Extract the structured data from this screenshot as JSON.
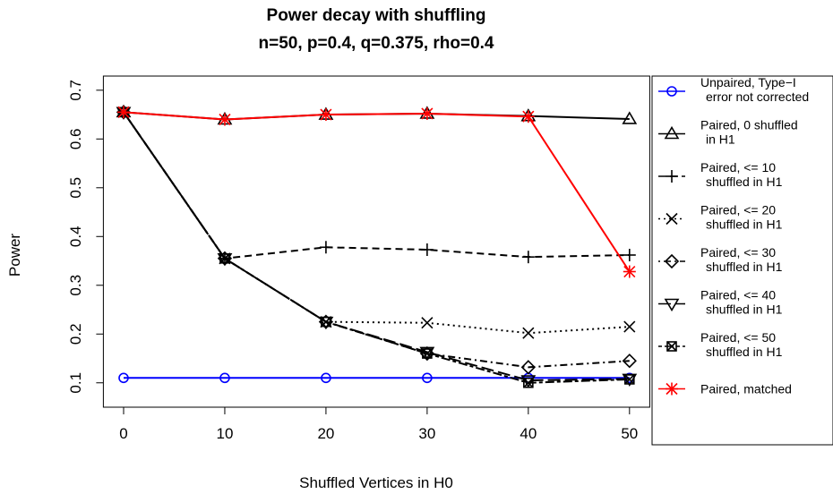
{
  "chart_data": {
    "type": "line",
    "title": "Power decay with shuffling",
    "subtitle": "n=50, p=0.4, q=0.375, rho=0.4",
    "x_label": "Shuffled Vertices in H0",
    "y_label": "Power",
    "x": [
      0,
      10,
      20,
      30,
      40,
      50
    ],
    "xlim": [
      -2,
      52
    ],
    "xticks": [
      0,
      10,
      20,
      30,
      40,
      50
    ],
    "ylim": [
      0.05,
      0.729
    ],
    "yticks": [
      0.1,
      0.2,
      0.3,
      0.4,
      0.5,
      0.6,
      0.7
    ],
    "legend": "right",
    "series": [
      {
        "name": "Unpaired, Type−I\nerror not corrected",
        "color": "#0000ff",
        "marker": "circle",
        "dash": "",
        "values": [
          0.11,
          0.11,
          0.11,
          0.11,
          0.11,
          0.11
        ]
      },
      {
        "name": "Paired, 0 shuffled\nin H1",
        "color": "#000000",
        "marker": "triangle",
        "dash": "",
        "values": [
          0.655,
          0.64,
          0.65,
          0.652,
          0.647,
          0.641
        ]
      },
      {
        "name": "Paired, <= 10\nshuffled in H1",
        "color": "#000000",
        "marker": "plus",
        "dash": "8 5",
        "values": [
          0.655,
          0.355,
          0.378,
          0.373,
          0.358,
          0.362
        ]
      },
      {
        "name": "Paired, <= 20\nshuffled in H1",
        "color": "#000000",
        "marker": "x",
        "dash": "2 4",
        "values": [
          0.655,
          0.355,
          0.225,
          0.223,
          0.202,
          0.215
        ]
      },
      {
        "name": "Paired, <= 30\nshuffled in H1",
        "color": "#000000",
        "marker": "diamond",
        "dash": "2 4 8 4",
        "values": [
          0.655,
          0.355,
          0.225,
          0.16,
          0.132,
          0.145
        ]
      },
      {
        "name": "Paired, <= 40\nshuffled in H1",
        "color": "#000000",
        "marker": "triangle-down",
        "dash": "14 5",
        "values": [
          0.655,
          0.355,
          0.225,
          0.163,
          0.105,
          0.108
        ]
      },
      {
        "name": "Paired, <= 50\nshuffled in H1",
        "color": "#000000",
        "marker": "square-x",
        "dash": "4 3 10 3",
        "values": [
          0.655,
          0.355,
          0.225,
          0.16,
          0.1,
          0.107
        ]
      },
      {
        "name": "Paired, matched",
        "color": "#ff0000",
        "marker": "star",
        "dash": "",
        "values": [
          0.655,
          0.64,
          0.65,
          0.652,
          0.646,
          0.328
        ]
      }
    ]
  }
}
